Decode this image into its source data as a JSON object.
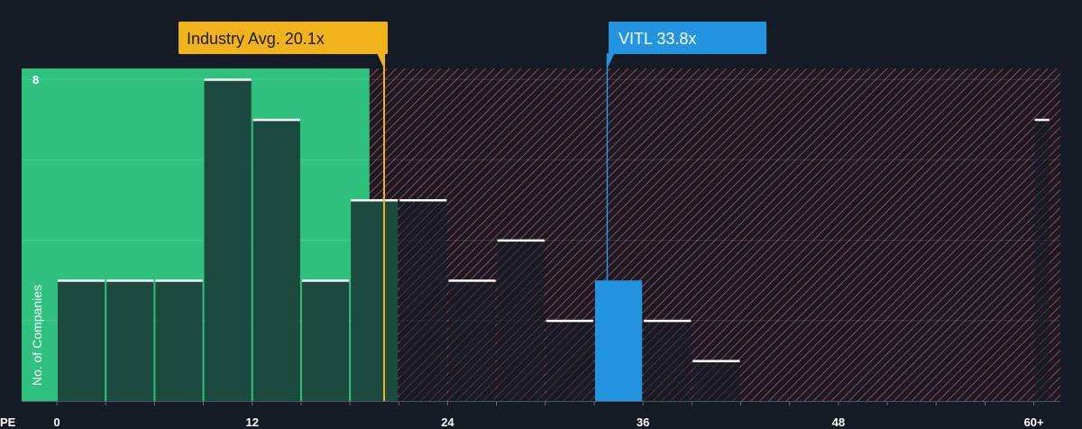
{
  "chart_data": {
    "type": "bar",
    "x_axis_name": "PE",
    "ylabel": "No. of Companies",
    "x_ticks": [
      "0",
      "12",
      "24",
      "36",
      "48",
      "60+"
    ],
    "y_tick_labels": [
      {
        "value": 8,
        "label": "8"
      }
    ],
    "ylim": [
      0,
      8.3
    ],
    "xlim": [
      0,
      61
    ],
    "bins": [
      {
        "from": 0,
        "to": 3,
        "count": 3
      },
      {
        "from": 3,
        "to": 6,
        "count": 3
      },
      {
        "from": 6,
        "to": 9,
        "count": 3
      },
      {
        "from": 9,
        "to": 12,
        "count": 8
      },
      {
        "from": 12,
        "to": 15,
        "count": 7
      },
      {
        "from": 15,
        "to": 18,
        "count": 3
      },
      {
        "from": 18,
        "to": 21,
        "count": 5
      },
      {
        "from": 21,
        "to": 24,
        "count": 5
      },
      {
        "from": 24,
        "to": 27,
        "count": 3
      },
      {
        "from": 27,
        "to": 30,
        "count": 4
      },
      {
        "from": 30,
        "to": 33,
        "count": 2
      },
      {
        "from": 33,
        "to": 36,
        "count": 3,
        "highlight": true
      },
      {
        "from": 36,
        "to": 39,
        "count": 2
      },
      {
        "from": 39,
        "to": 42,
        "count": 1
      },
      {
        "from": 60,
        "to": 61,
        "count": 7
      }
    ],
    "fair_zone_end": 19.2,
    "industry_avg": {
      "value": 20.1,
      "label": "Industry Avg. 20.1x"
    },
    "company": {
      "value": 33.8,
      "label": "VITL 33.8x"
    },
    "grid": true,
    "colors": {
      "background": "#151b24",
      "fair_zone": "#2ec27e",
      "bar_dark": "#1d4a3e",
      "overvalued_hatch": "#e0454a",
      "highlight_bar": "#2394e0",
      "industry_line": "#f0b31c",
      "bar_top": "#ffffff"
    }
  }
}
